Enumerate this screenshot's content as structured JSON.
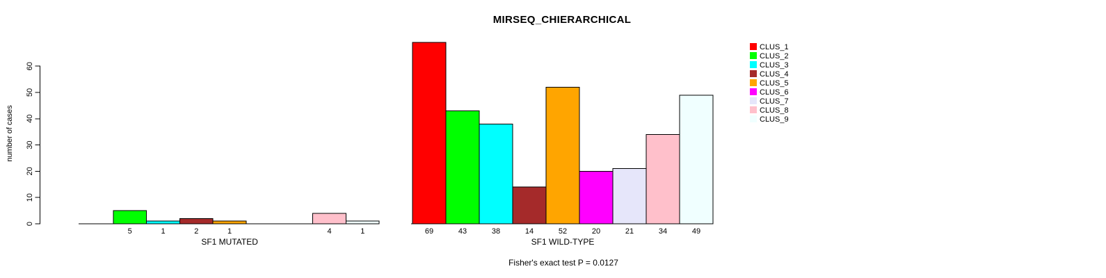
{
  "chart_data": {
    "type": "bar",
    "title": "MIRSEQ_CHIERARCHICAL",
    "ylabel": "number of cases",
    "xlabel": "",
    "ylim": [
      0,
      60
    ],
    "yticks": [
      0,
      10,
      20,
      30,
      40,
      50,
      60
    ],
    "grid": false,
    "bar_border_color": "#000000",
    "categories": [
      "CLUS_1",
      "CLUS_2",
      "CLUS_3",
      "CLUS_4",
      "CLUS_5",
      "CLUS_6",
      "CLUS_7",
      "CLUS_8",
      "CLUS_9"
    ],
    "colors": [
      "#FF0000",
      "#00FF00",
      "#00FFFF",
      "#A52A2A",
      "#FFA500",
      "#FF00FF",
      "#E6E6FA",
      "#FFC0CB",
      "#F0FFFF"
    ],
    "groups": [
      {
        "label": "SF1 MUTATED",
        "values": [
          0,
          5,
          1,
          2,
          1,
          0,
          0,
          4,
          1
        ]
      },
      {
        "label": "SF1 WILD-TYPE",
        "values": [
          69,
          43,
          38,
          14,
          52,
          20,
          21,
          34,
          49
        ]
      }
    ],
    "value_labels_note": "bar values printed under x-axis; zero values omitted",
    "legend": {
      "position": "right",
      "entries": [
        "CLUS_1",
        "CLUS_2",
        "CLUS_3",
        "CLUS_4",
        "CLUS_5",
        "CLUS_6",
        "CLUS_7",
        "CLUS_8",
        "CLUS_9"
      ]
    },
    "caption": "Fisher's exact test P = 0.0127"
  }
}
